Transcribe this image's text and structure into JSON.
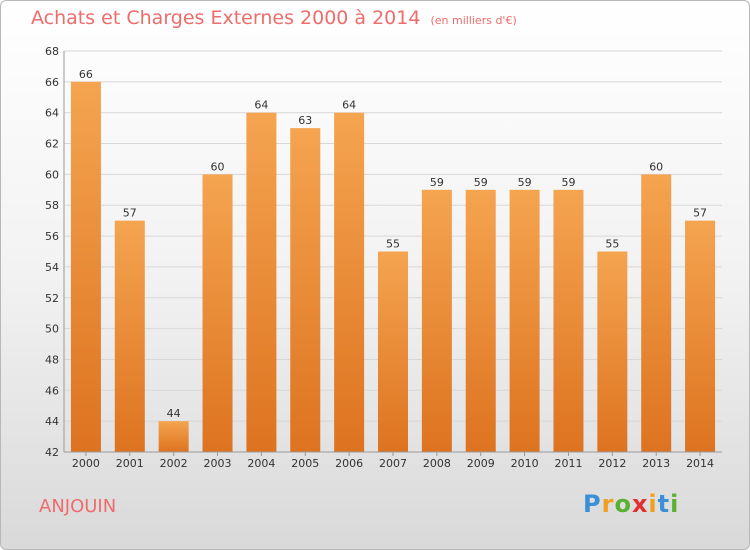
{
  "title": "Achats et Charges Externes 2000 à 2014",
  "subtitle": "(en milliers d'€)",
  "place": "ANJOUIN",
  "logo": {
    "letters": [
      "P",
      "r",
      "o",
      "x",
      "i",
      "t",
      "i"
    ],
    "colors": [
      "#3a8fd6",
      "#f0a020",
      "#5ab030",
      "#e03030",
      "#f0a020",
      "#3a8fd6",
      "#5ab030"
    ]
  },
  "colors": {
    "bar_top": "#f5a450",
    "bar_bottom": "#dd7320",
    "title": "#ef6c6c"
  },
  "chart_data": {
    "type": "bar",
    "categories": [
      "2000",
      "2001",
      "2002",
      "2003",
      "2004",
      "2005",
      "2006",
      "2007",
      "2008",
      "2009",
      "2010",
      "2011",
      "2012",
      "2013",
      "2014"
    ],
    "values": [
      66,
      57,
      44,
      60,
      64,
      63,
      64,
      55,
      59,
      59,
      59,
      59,
      55,
      60,
      57
    ],
    "ylim": [
      42,
      68
    ],
    "yticks": [
      42,
      44,
      46,
      48,
      50,
      52,
      54,
      56,
      58,
      60,
      62,
      64,
      66,
      68
    ],
    "grid": true
  }
}
